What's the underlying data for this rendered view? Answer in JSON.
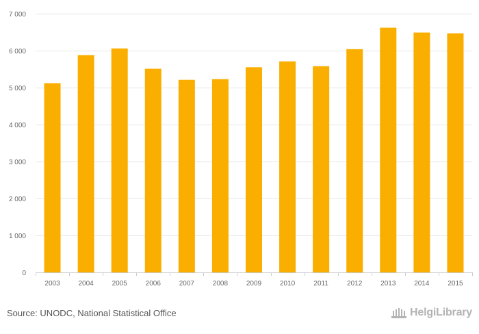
{
  "chart_data": {
    "type": "bar",
    "title": "",
    "xlabel": "",
    "ylabel": "",
    "categories": [
      "2003",
      "2004",
      "2005",
      "2006",
      "2007",
      "2008",
      "2009",
      "2010",
      "2011",
      "2012",
      "2013",
      "2014",
      "2015"
    ],
    "values": [
      5120,
      5880,
      6060,
      5510,
      5210,
      5230,
      5550,
      5710,
      5580,
      6040,
      6620,
      6490,
      6470
    ],
    "ylim": [
      0,
      7000
    ],
    "yticks": [
      0,
      1000,
      2000,
      3000,
      4000,
      5000,
      6000,
      7000
    ],
    "ytick_labels": [
      "0",
      "1 000",
      "2 000",
      "3 000",
      "4 000",
      "5 000",
      "6 000",
      "7 000"
    ],
    "grid": true,
    "legend": "none",
    "bar_color": "#f9ae00"
  },
  "footer": {
    "source": "Source: UNODC, National Statistical Office",
    "brand": "HelgiLibrary"
  },
  "colors": {
    "grid": "#e6e6e6",
    "axis": "#cccccc",
    "brand": "#b3b3b3"
  }
}
